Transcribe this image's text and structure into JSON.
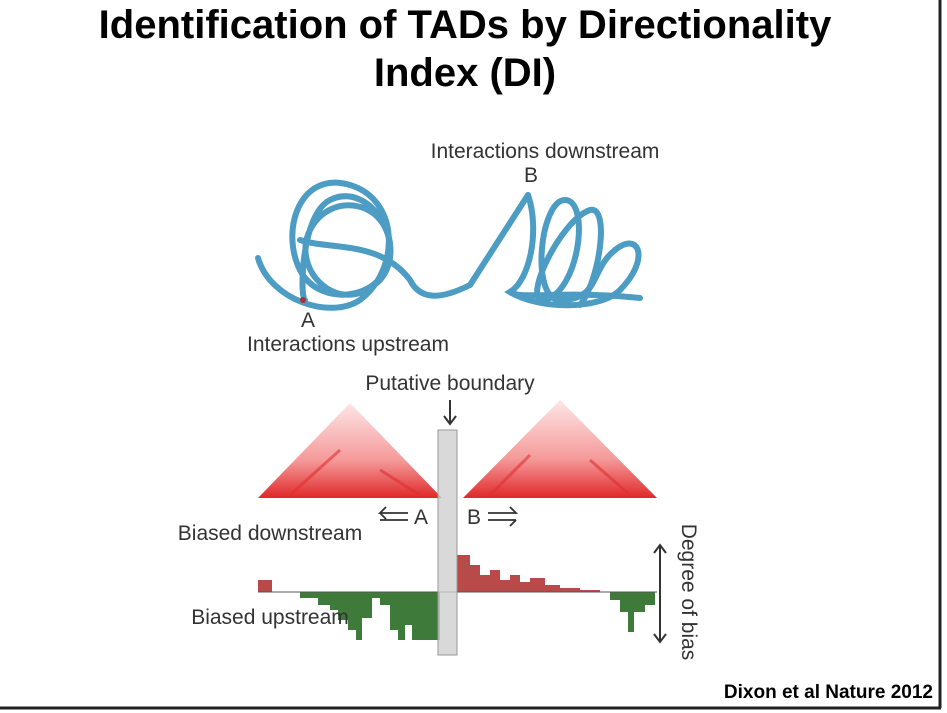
{
  "title": "Identification of TADs by Directionality Index (DI)",
  "structure": {
    "label_downstream": "Interactions downstream",
    "point_b": "B",
    "point_a": "A",
    "label_upstream": "Interactions upstream"
  },
  "heatmap": {
    "boundary_label": "Putative boundary",
    "point_a": "A",
    "point_b": "B"
  },
  "di_track": {
    "biased_downstream": "Biased downstream",
    "biased_upstream": "Biased upstream",
    "axis_label": "Degree of bias"
  },
  "citation": "Dixon et al Nature 2012"
}
